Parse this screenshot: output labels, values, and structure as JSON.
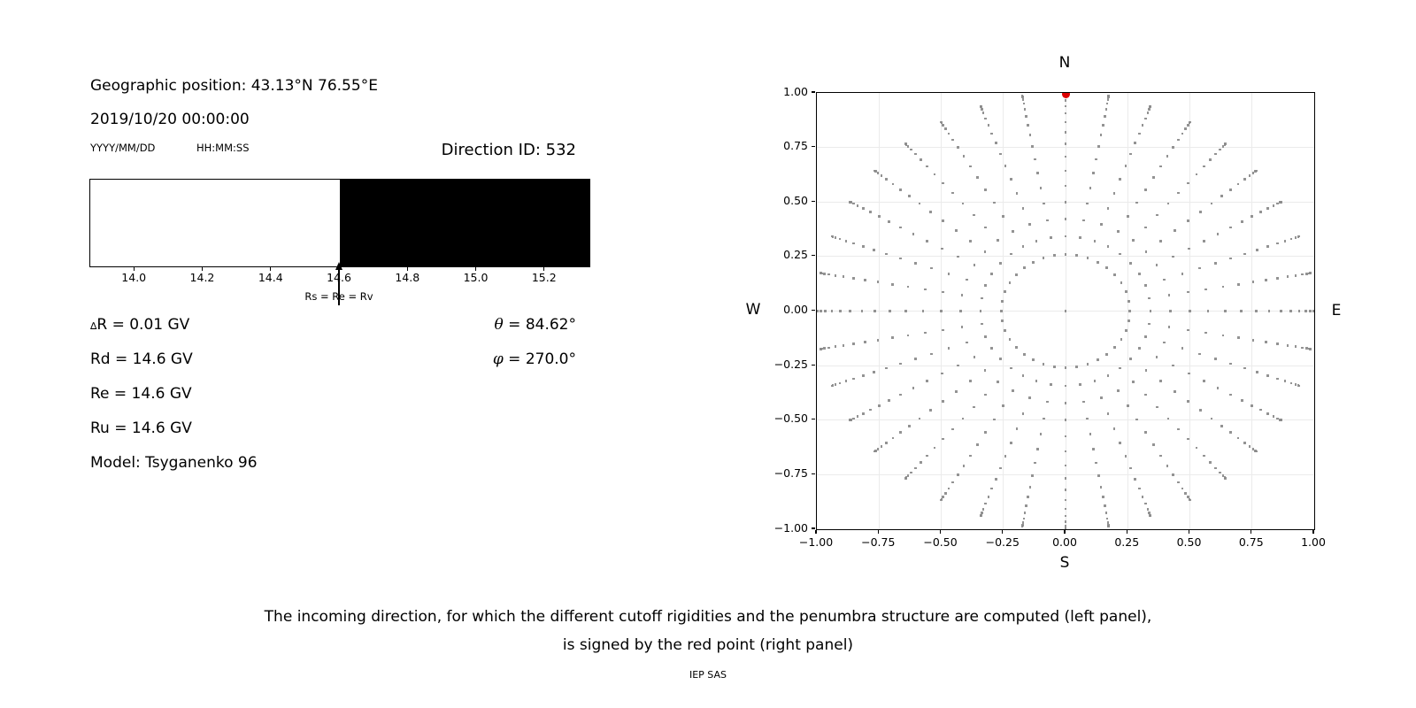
{
  "left_panel": {
    "geo_position": "Geographic position: 43.13°N 76.55°E",
    "datetime": "2019/10/20 00:00:00",
    "date_format_hint": "YYYY/MM/DD",
    "time_format_hint": "HH:MM:SS",
    "direction_id": "Direction ID: 532",
    "values": {
      "delta_symbol": "∆",
      "delta_rest": "R = 0.01 GV",
      "rd": "Rd = 14.6 GV",
      "re": "Re = 14.6 GV",
      "ru": "Ru = 14.6 GV",
      "model": "Model: Tsyganenko 96",
      "theta_symbol": "θ",
      "theta_rest": " = 84.62°",
      "phi_symbol": "φ",
      "phi_rest": " = 270.0°"
    }
  },
  "right_panel": {
    "compass": {
      "n": "N",
      "s": "S",
      "e": "E",
      "w": "W"
    }
  },
  "caption": {
    "line1": "The incoming direction, for which the different cutoff rigidities and the penumbra structure are computed (left panel),",
    "line2": "is signed by the red point (right panel)",
    "credit": "IEP SAS"
  },
  "chart_data": [
    {
      "type": "area",
      "name": "penumbra-structure",
      "xlim": [
        13.87,
        15.33
      ],
      "xticks": {
        "values": [
          14.0,
          14.2,
          14.4,
          14.6,
          14.8,
          15.0,
          15.2
        ],
        "labels": [
          "14.0",
          "14.2",
          "14.4",
          "14.6",
          "14.8",
          "15.0",
          "15.2"
        ]
      },
      "segments": [
        {
          "range": [
            13.87,
            14.6
          ],
          "color": "#ffffff",
          "meaning": "allowed rigidities"
        },
        {
          "range": [
            14.6,
            15.33
          ],
          "color": "#000000",
          "meaning": "forbidden rigidities"
        }
      ],
      "annotation": {
        "x": 14.6,
        "label": "Rs = Re = Rv"
      },
      "grid": false
    },
    {
      "type": "scatter",
      "name": "incoming-direction-grid",
      "xlim": [
        -1.0,
        1.0
      ],
      "ylim": [
        -1.0,
        1.0
      ],
      "xticks": {
        "values": [
          -1.0,
          -0.75,
          -0.5,
          -0.25,
          0.0,
          0.25,
          0.5,
          0.75,
          1.0
        ],
        "labels": [
          "−1.00",
          "−0.75",
          "−0.50",
          "−0.25",
          "0.00",
          "0.25",
          "0.50",
          "0.75",
          "1.00"
        ]
      },
      "yticks": {
        "values": [
          1.0,
          0.75,
          0.5,
          0.25,
          0.0,
          -0.25,
          -0.5,
          -0.75,
          -1.0
        ],
        "labels": [
          "1.00",
          "0.75",
          "0.50",
          "0.25",
          "0.00",
          "−0.25",
          "−0.50",
          "−0.75",
          "−1.00"
        ]
      },
      "grid": {
        "show": true,
        "step": 0.25,
        "color": "#ebebeb"
      },
      "series": [
        {
          "name": "direction-grid-dots",
          "marker": "square",
          "color": "#8a8a8a",
          "generator": {
            "description": "x = sin(zenith)*sin(azimuth), y = sin(zenith)*cos(azimuth); azimuth clockwise from N",
            "azimuth_deg": {
              "start": 0,
              "stop": 350,
              "step": 10
            },
            "zenith_deg": {
              "start": 15,
              "stop": 90,
              "step": 5
            },
            "include_center_point": true
          }
        },
        {
          "name": "selected-direction",
          "marker": "circle",
          "color": "#dd0000",
          "points": [
            [
              0.0,
              0.9956
            ]
          ]
        }
      ]
    }
  ]
}
